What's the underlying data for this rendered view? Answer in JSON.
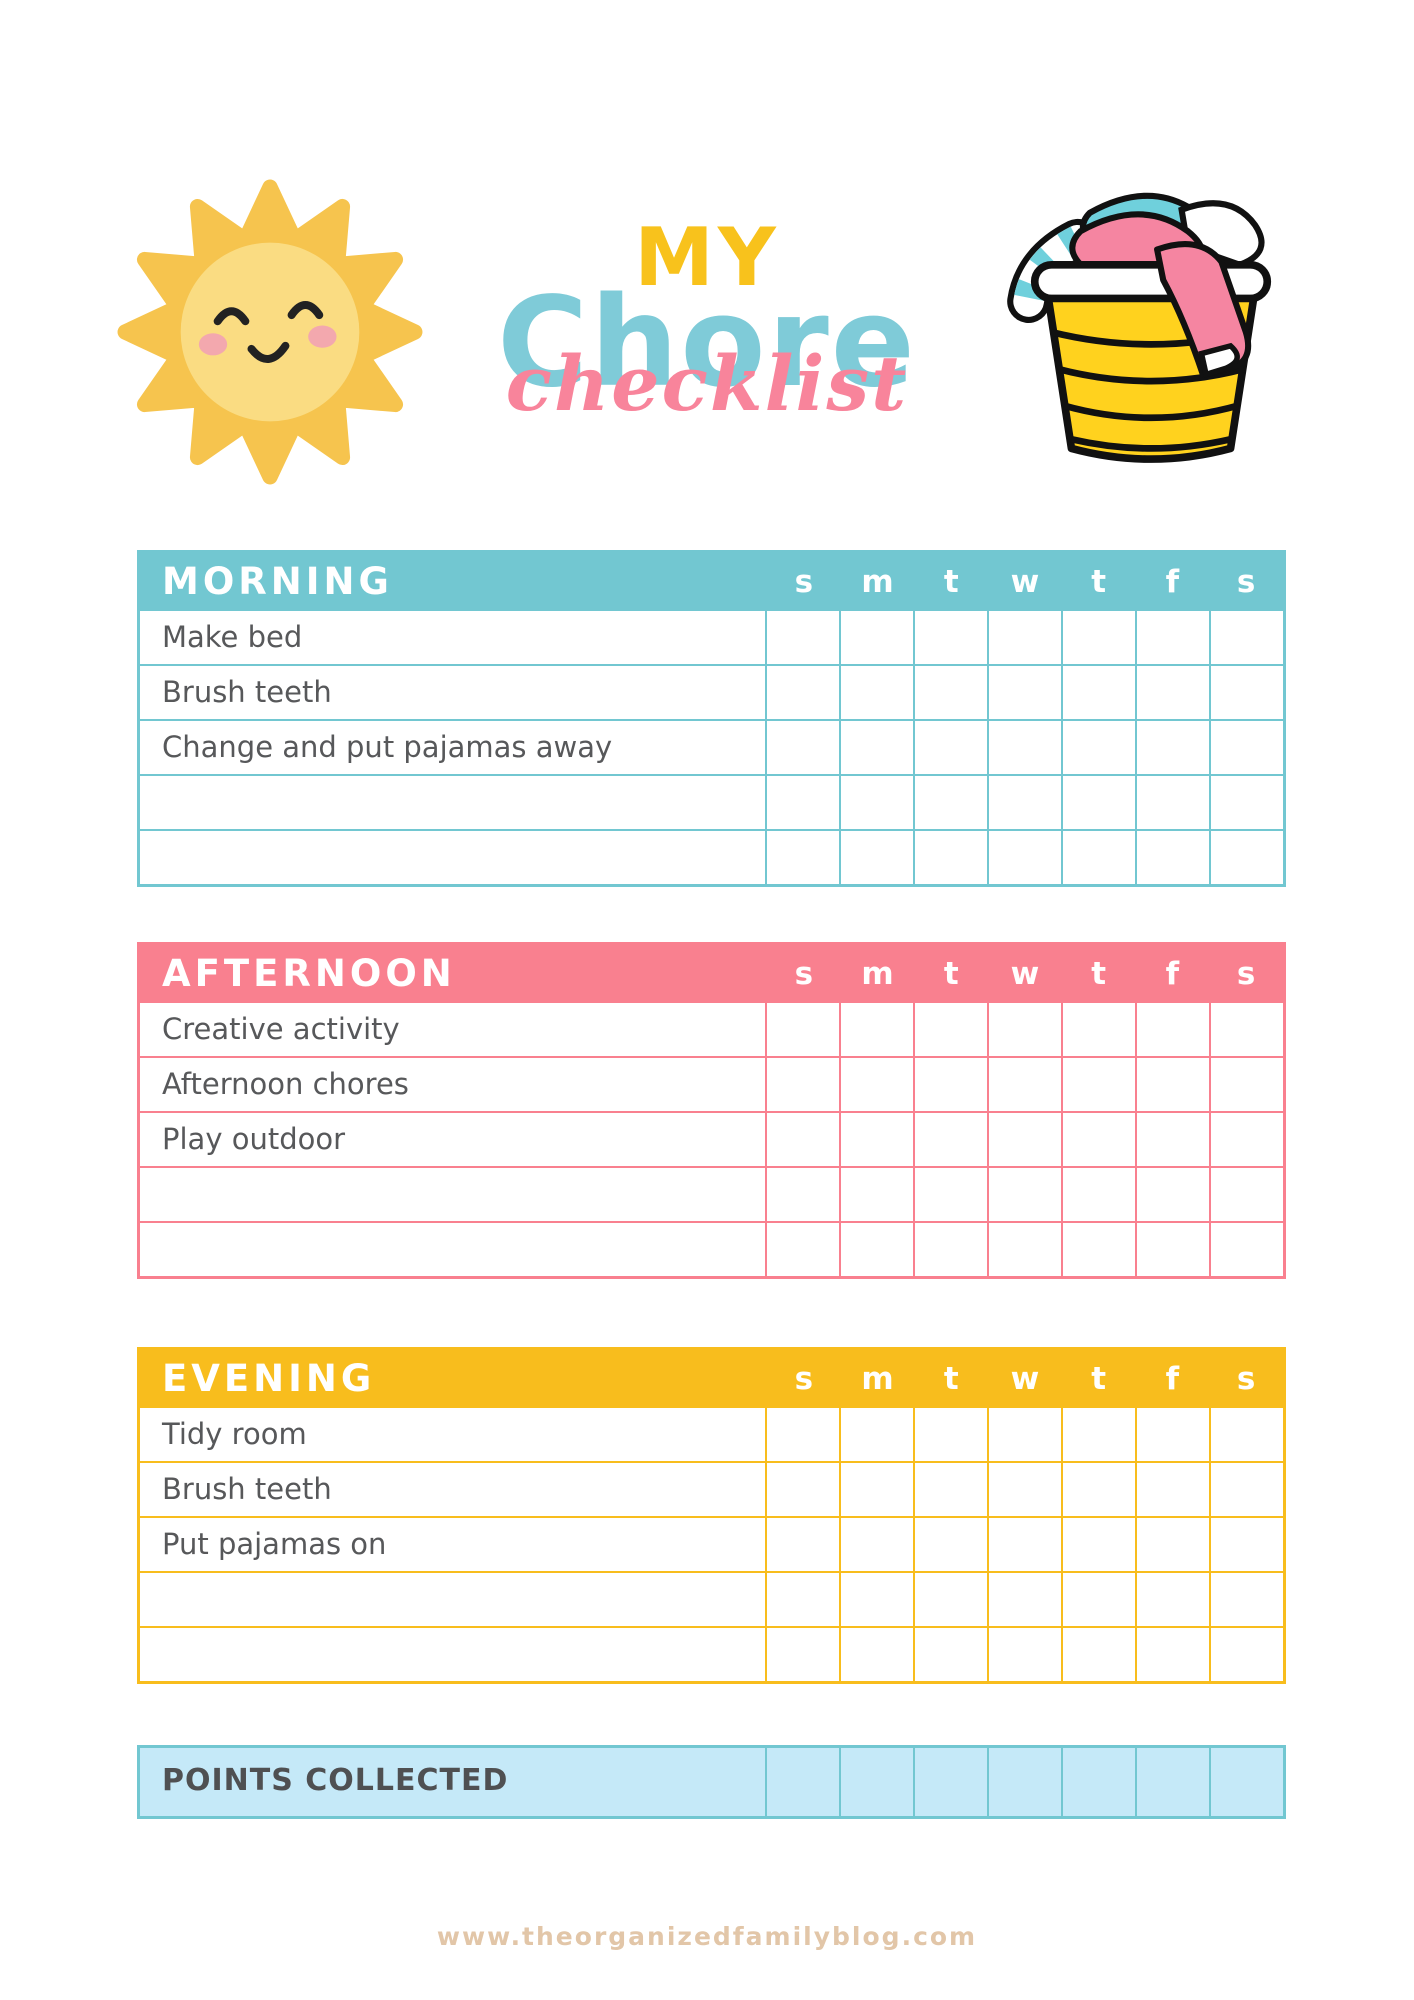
{
  "title": {
    "line1": "MY",
    "line2": "Chore",
    "line3": "checklist"
  },
  "days": [
    "s",
    "m",
    "t",
    "w",
    "t",
    "f",
    "s"
  ],
  "sections": [
    {
      "id": "morning",
      "label": "MORNING",
      "color": "#72C7D1",
      "tasks": [
        "Make bed",
        "Brush teeth",
        "Change and put pajamas away",
        "",
        ""
      ]
    },
    {
      "id": "afternoon",
      "label": "AFTERNOON",
      "color": "#F9808F",
      "tasks": [
        "Creative activity",
        "Afternoon chores",
        "Play outdoor",
        "",
        ""
      ]
    },
    {
      "id": "evening",
      "label": "EVENING",
      "color": "#F8BD1D",
      "tasks": [
        "Tidy room",
        "Brush teeth",
        "Put pajamas on",
        "",
        ""
      ]
    }
  ],
  "points": {
    "label": "POINTS COLLECTED",
    "fill": "#C5E9F8",
    "border": "#72C7D1"
  },
  "footer": {
    "url": "www.theorganizedfamilyblog.com",
    "color": "#E2C6A8"
  },
  "colors": {
    "task_text": "#57585A",
    "points_text": "#4F5052",
    "title_yellow": "#F8C21C",
    "title_teal": "#7FCBD8",
    "title_pink": "#F8849B",
    "sun_rays": "#F6C44E",
    "sun_body": "#FADC82",
    "sun_cheeks": "#F3A8AE",
    "sun_features": "#222222",
    "basket_yellow": "#FFD21E",
    "cloth_pink": "#F585A1",
    "cloth_teal": "#6FD0DC",
    "outline": "#111111"
  }
}
